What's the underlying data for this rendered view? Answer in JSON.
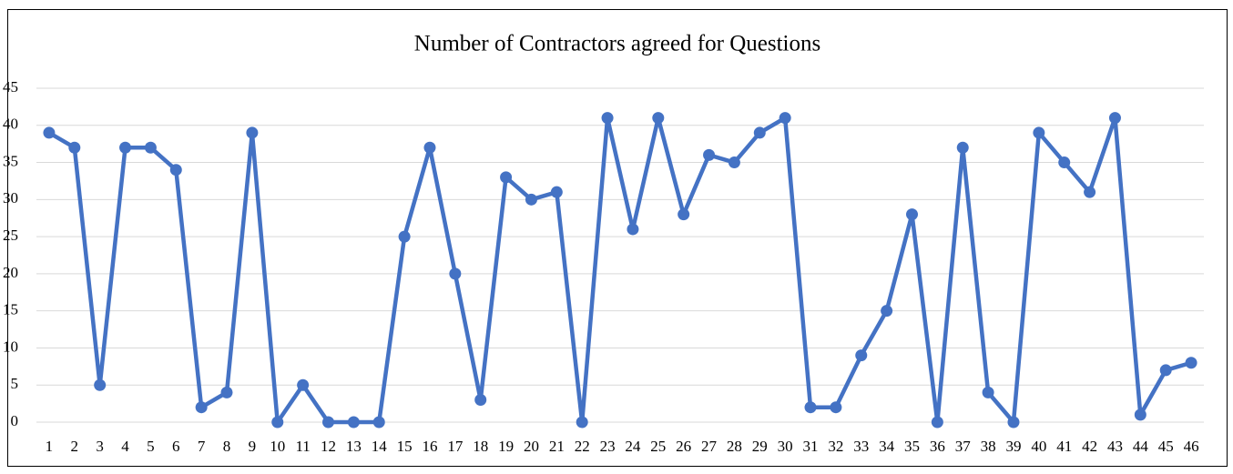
{
  "chart_data": {
    "type": "line",
    "title": "Number of Contractors agreed for Questions",
    "categories": [
      "1",
      "2",
      "3",
      "4",
      "5",
      "6",
      "7",
      "8",
      "9",
      "10",
      "11",
      "12",
      "13",
      "14",
      "15",
      "16",
      "17",
      "18",
      "19",
      "20",
      "21",
      "22",
      "23",
      "24",
      "25",
      "26",
      "27",
      "28",
      "29",
      "30",
      "31",
      "32",
      "33",
      "34",
      "35",
      "36",
      "37",
      "38",
      "39",
      "40",
      "41",
      "42",
      "43",
      "44",
      "45",
      "46"
    ],
    "values": [
      39,
      37,
      5,
      37,
      37,
      34,
      2,
      4,
      39,
      0,
      5,
      0,
      0,
      0,
      25,
      37,
      20,
      3,
      33,
      30,
      31,
      0,
      41,
      26,
      41,
      28,
      36,
      35,
      39,
      41,
      2,
      2,
      9,
      15,
      28,
      0,
      37,
      4,
      0,
      39,
      35,
      31,
      41,
      1,
      7,
      8
    ],
    "color": "#4472c4",
    "ylim": [
      0,
      45
    ],
    "yticks": [
      0,
      5,
      10,
      15,
      20,
      25,
      30,
      35,
      40,
      45
    ],
    "grid": true
  }
}
